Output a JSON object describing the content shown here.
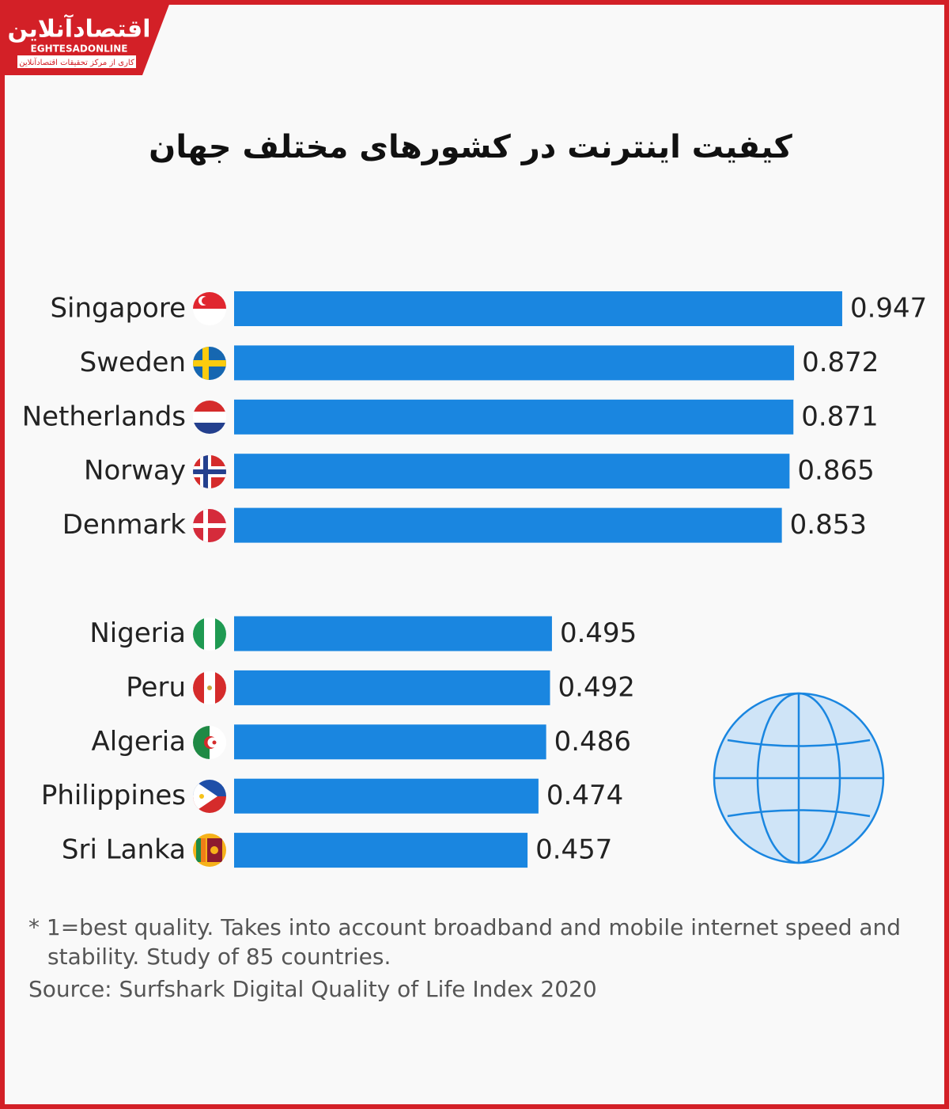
{
  "logo": {
    "name": "اقتصادآنلاین",
    "latin": "EGHTESADONLINE",
    "tagline": "کاری از مرکز تحقیقات اقتصادآنلاین"
  },
  "chart_data": {
    "type": "bar",
    "orientation": "horizontal",
    "title": "کیفیت اینترنت در کشورهای مختلف جهان",
    "categories": [
      "Singapore",
      "Sweden",
      "Netherlands",
      "Norway",
      "Denmark",
      "Nigeria",
      "Peru",
      "Algeria",
      "Philippines",
      "Sri Lanka"
    ],
    "values": [
      0.947,
      0.872,
      0.871,
      0.865,
      0.853,
      0.495,
      0.492,
      0.486,
      0.474,
      0.457
    ],
    "color": "#1a86e0",
    "xlim": [
      0,
      1
    ],
    "notes": [
      "* 1=best quality. Takes into account broadband and mobile internet speed and",
      "stability. Study of 85 countries."
    ],
    "source": "Source: Surfshark Digital Quality of Life Index 2020"
  }
}
